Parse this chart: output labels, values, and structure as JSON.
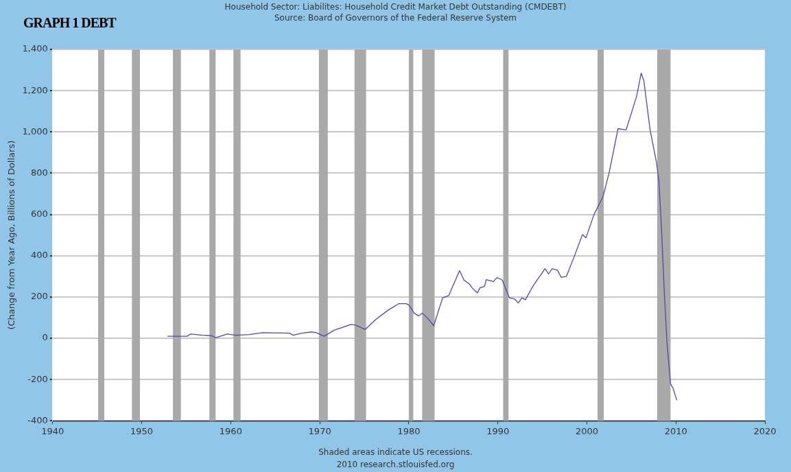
{
  "chart_data": {
    "type": "line",
    "title": "Household Sector: Liabilites: Household Credit Market Debt Outstanding (CMDEBT)",
    "subtitle": "Source: Board of Governors of the Federal Reserve System",
    "ylabel": "(Change from Year Ago, Billions of Dollars)",
    "annotations": [
      "GRAPH 1 DEBT",
      "Shaded areas indicate US recessions.",
      "2010 research.stlouisfed.org"
    ],
    "xlim": [
      1940,
      2020
    ],
    "xticks": [
      1940,
      1950,
      1960,
      1970,
      1980,
      1990,
      2000,
      2010,
      2020
    ],
    "ylim": [
      -400,
      1400
    ],
    "yticks": [
      -400,
      -200,
      0,
      200,
      400,
      600,
      800,
      {
        "value": 1000,
        "label": "1,000"
      },
      {
        "value": 1200,
        "label": "1,200"
      },
      {
        "value": 1400,
        "label": "1,400"
      }
    ],
    "grid": "y",
    "legend": false,
    "marker": "none",
    "line_style": "solid",
    "x": [
      1952.9,
      1955.1,
      1955.5,
      1956.8,
      1957.9,
      1958.3,
      1959.6,
      1960.6,
      1962.1,
      1963.6,
      1966.6,
      1967.0,
      1968.0,
      1969.1,
      1969.6,
      1970.5,
      1971.6,
      1973.5,
      1974.0,
      1975.1,
      1976.3,
      1977.7,
      1978.9,
      1979.7,
      1980.0,
      1980.6,
      1981.1,
      1981.5,
      1982.1,
      1982.8,
      1983.8,
      1984.5,
      1985.7,
      1986.2,
      1986.8,
      1987.1,
      1987.7,
      1988.0,
      1988.5,
      1988.7,
      1989.5,
      1989.9,
      1990.5,
      1991.3,
      1991.9,
      1992.3,
      1992.7,
      1993.1,
      1994.0,
      1995.3,
      1995.7,
      1996.1,
      1996.7,
      1997.1,
      1997.7,
      1998.6,
      1999.5,
      1999.9,
      2000.8,
      2001.8,
      2002.5,
      2003.5,
      2004.4,
      2004.9,
      2005.6,
      2006.1,
      2006.4,
      2007.1,
      2007.8,
      2008.1,
      2008.4,
      2008.7,
      2009.0,
      2009.4,
      2009.7,
      2010.1
    ],
    "series": [
      {
        "color": "#4a4aac",
        "values": [
          10,
          10,
          21,
          15,
          12,
          2,
          21,
          15,
          18,
          27,
          25,
          15,
          25,
          31,
          27,
          10,
          39,
          67,
          64,
          43,
          92,
          137,
          168,
          168,
          162,
          122,
          108,
          122,
          98,
          61,
          196,
          208,
          328,
          282,
          263,
          245,
          220,
          245,
          251,
          284,
          275,
          294,
          282,
          196,
          190,
          171,
          196,
          187,
          257,
          337,
          312,
          337,
          330,
          296,
          300,
          398,
          502,
          487,
          600,
          685,
          802,
          1016,
          1010,
          1077,
          1175,
          1285,
          1248,
          1010,
          857,
          759,
          514,
          220,
          -24,
          -220,
          -245,
          -300
        ]
      }
    ],
    "bands": [
      {
        "axis": "x",
        "from": 1945.1,
        "to": 1945.8,
        "color": "#a9a9a9"
      },
      {
        "axis": "x",
        "from": 1948.9,
        "to": 1949.8,
        "color": "#a9a9a9"
      },
      {
        "axis": "x",
        "from": 1953.5,
        "to": 1954.4,
        "color": "#a9a9a9"
      },
      {
        "axis": "x",
        "from": 1957.6,
        "to": 1958.3,
        "color": "#a9a9a9"
      },
      {
        "axis": "x",
        "from": 1960.3,
        "to": 1961.1,
        "color": "#a9a9a9"
      },
      {
        "axis": "x",
        "from": 1969.9,
        "to": 1970.9,
        "color": "#a9a9a9"
      },
      {
        "axis": "x",
        "from": 1973.9,
        "to": 1975.2,
        "color": "#a9a9a9"
      },
      {
        "axis": "x",
        "from": 1980.0,
        "to": 1980.5,
        "color": "#a9a9a9"
      },
      {
        "axis": "x",
        "from": 1981.5,
        "to": 1982.9,
        "color": "#a9a9a9"
      },
      {
        "axis": "x",
        "from": 1990.6,
        "to": 1991.2,
        "color": "#a9a9a9"
      },
      {
        "axis": "x",
        "from": 2001.2,
        "to": 2001.9,
        "color": "#a9a9a9"
      },
      {
        "axis": "x",
        "from": 2007.9,
        "to": 2009.4,
        "color": "#a9a9a9"
      }
    ]
  }
}
